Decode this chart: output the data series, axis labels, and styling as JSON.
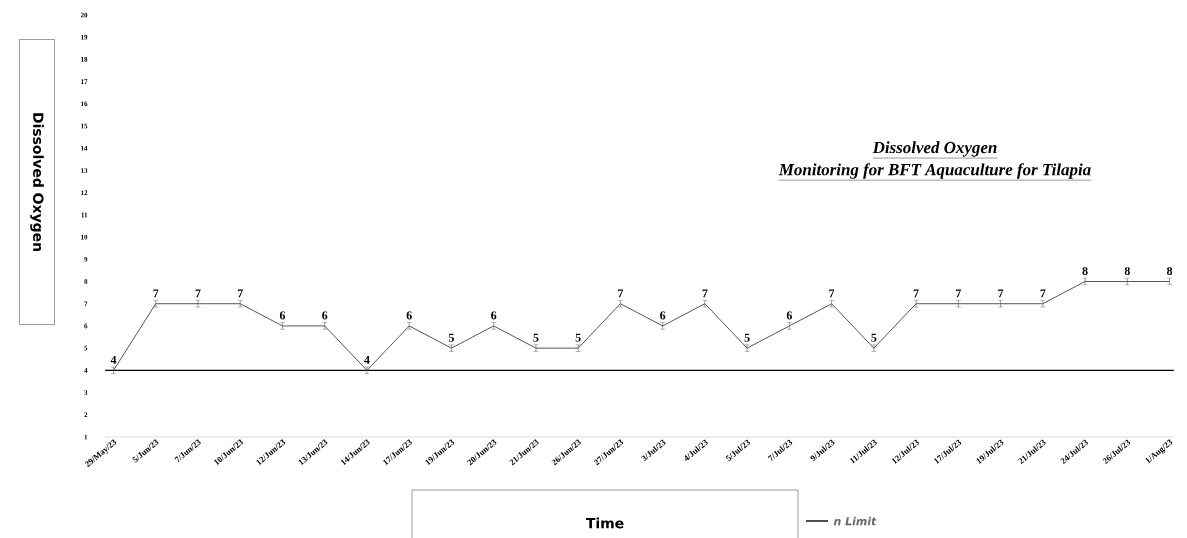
{
  "chart_data": {
    "type": "line",
    "title": "Dissolved Oxygen",
    "subtitle": "Monitoring for BFT Aquaculture for Tilapia",
    "xlabel": "Time",
    "ylabel": "Dissolved Oxygen",
    "categories": [
      "29/May/23",
      "5/Jun/23",
      "7/Jun/23",
      "10/Jun/23",
      "12/Jun/23",
      "13/Jun/23",
      "14/Jun/23",
      "17/Jun/23",
      "19/Jun/23",
      "20/Jun/23",
      "21/Jun/23",
      "26/Jun/23",
      "27/Jun/23",
      "3/Jul/23",
      "4/Jul/23",
      "5/Jul/23",
      "7/Jul/23",
      "9/Jul/23",
      "11/Jul/23",
      "12/Jul/23",
      "17/Jul/23",
      "19/Jul/23",
      "21/Jul/23",
      "24/Jul/23",
      "26/Jul/23",
      "1/Aug/23"
    ],
    "values": [
      4,
      7,
      7,
      7,
      6,
      6,
      4,
      6,
      5,
      6,
      5,
      5,
      7,
      6,
      7,
      5,
      6,
      7,
      5,
      7,
      7,
      7,
      7,
      8,
      8,
      8
    ],
    "errors": [
      0.15,
      0.15,
      0.15,
      0.15,
      0.15,
      0.15,
      0.15,
      0.15,
      0.15,
      0.15,
      0.15,
      0.15,
      0.15,
      0.15,
      0.15,
      0.15,
      0.15,
      0.15,
      0.15,
      0.15,
      0.15,
      0.15,
      0.15,
      0.15,
      0.15,
      0.15
    ],
    "color": "#555555",
    "data_labels": true,
    "marker": "none",
    "line_style": "solid",
    "grid": false,
    "legend": "bottom",
    "ylim": [
      1,
      20
    ],
    "yticks": [
      1,
      2,
      3,
      4,
      5,
      6,
      7,
      8,
      9,
      10,
      11,
      12,
      13,
      14,
      15,
      16,
      17,
      18,
      19,
      20
    ],
    "ref_lines": [
      {
        "axis": "y",
        "value": 4,
        "label": "n Limit",
        "color": "#000000"
      }
    ]
  }
}
